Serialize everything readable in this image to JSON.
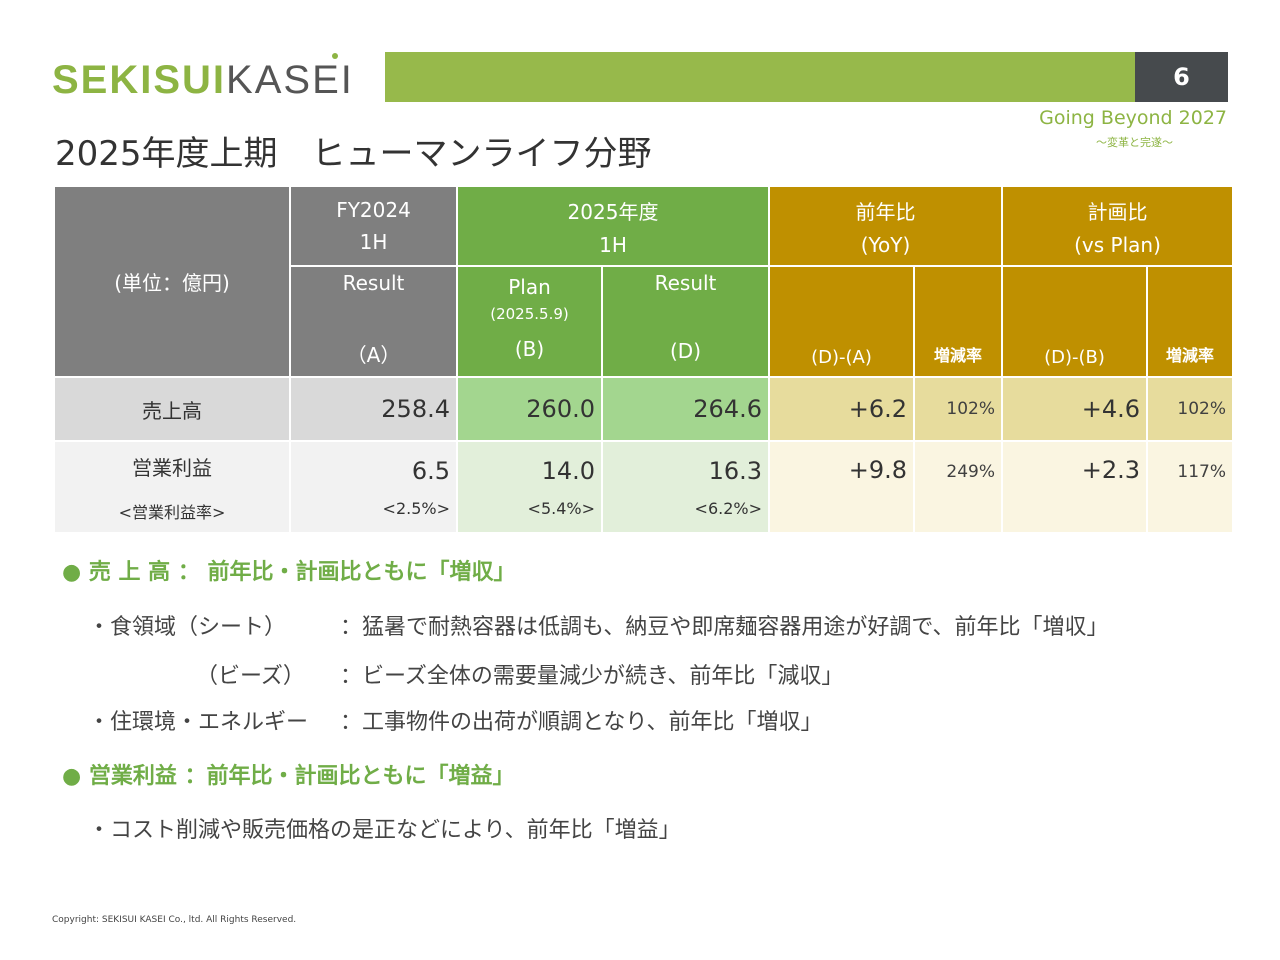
{
  "logo": {
    "part1": "SEKISUI",
    "part2": "KASEI"
  },
  "page_number": "6",
  "slogan": "Going Beyond 2027",
  "slogan_sub": "～変革と完遂～",
  "title": "2025年度上期　ヒューマンライフ分野",
  "colors": {
    "accent_green": "#70AD47",
    "gold": "#BF9000",
    "gray": "#7F7F7F",
    "bar": "#97B94B"
  },
  "table": {
    "unit": "(単位：億円)",
    "fy2024": {
      "l1": "FY2024",
      "l2": "1H",
      "result": "Result",
      "code": "（A）"
    },
    "fy2025": {
      "l1": "2025年度",
      "l2": "1H",
      "plan": "Plan",
      "plan_date": "(2025.5.9)",
      "plan_code": "(B)",
      "result": "Result",
      "result_code": "(D)"
    },
    "yoy": {
      "l1": "前年比",
      "l2": "(YoY)",
      "diff": "(D)-(A)",
      "rate": "増減率"
    },
    "vsplan": {
      "l1": "計画比",
      "l2": "(vs Plan)",
      "diff": "(D)-(B)",
      "rate": "増減率"
    },
    "rows": [
      {
        "label": "売上高",
        "a": "258.4",
        "b": "260.0",
        "d": "264.6",
        "yoy_diff": "+6.2",
        "yoy_rate": "102%",
        "plan_diff": "+4.6",
        "plan_rate": "102%"
      },
      {
        "label": "営業利益",
        "sublabel": "<営業利益率>",
        "a": "6.5",
        "a_sub": "<2.5%>",
        "b": "14.0",
        "b_sub": "<5.4%>",
        "d": "16.3",
        "d_sub": "<6.2%>",
        "yoy_diff": "+9.8",
        "yoy_rate": "249%",
        "plan_diff": "+2.3",
        "plan_rate": "117%"
      }
    ]
  },
  "summary": {
    "sales_head": "売 上 高 ： 前年比・計画比ともに「増収」",
    "sales_items": [
      {
        "label": "・食領域（シート）",
        "text": "：猛暑で耐熱容器は低調も、納豆や即席麺容器用途が好調で、前年比「増収」"
      },
      {
        "label": "（ビーズ）",
        "text": "：ビーズ全体の需要量減少が続き、前年比「減収」"
      },
      {
        "label": "・住環境・エネルギー",
        "text": "：工事物件の出荷が順調となり、前年比「増収」"
      }
    ],
    "op_head": "営業利益 ：前年比・計画比ともに「増益」",
    "op_items": [
      "・コスト削減や販売価格の是正などにより、前年比「増益」"
    ]
  },
  "copyright": "Copyright: SEKISUI KASEI Co., ltd. All Rights Reserved."
}
